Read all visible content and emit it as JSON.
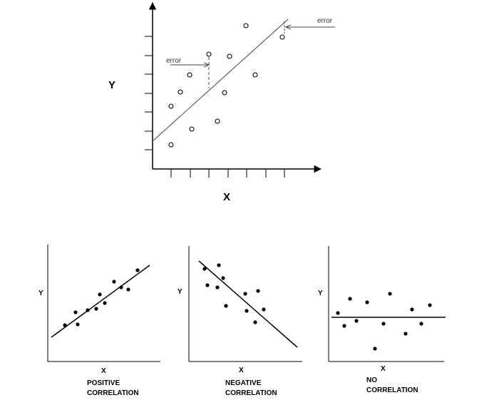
{
  "top": {
    "y_label": "Y",
    "x_label": "X",
    "error_label_left": "error",
    "error_label_right": "error"
  },
  "panels": [
    {
      "id": "positive",
      "y_label": "Y",
      "x_label": "X",
      "caption_line1": "POSITIVE",
      "caption_line2": "CORRELATION"
    },
    {
      "id": "negative",
      "y_label": "Y",
      "x_label": "X",
      "caption_line1": "NEGATIVE",
      "caption_line2": "CORRELATION"
    },
    {
      "id": "none",
      "y_label": "Y",
      "x_label": "X",
      "caption_line1": "NO",
      "caption_line2": "CORRELATION"
    }
  ]
}
